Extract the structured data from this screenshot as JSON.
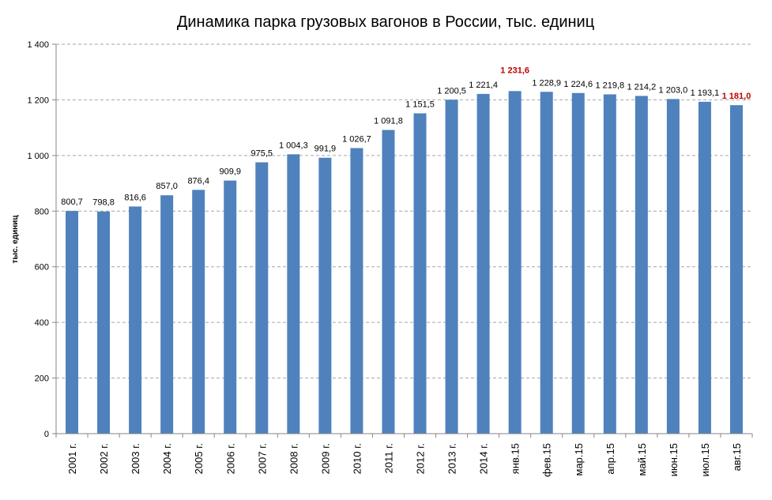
{
  "chart_data": {
    "type": "bar",
    "title": "Динамика парка грузовых вагонов в России, тыс. единиц",
    "xlabel": "",
    "ylabel": "тыс. единиц",
    "ylim": [
      0,
      1400
    ],
    "yticks": [
      0,
      200,
      400,
      600,
      800,
      1000,
      1200,
      1400
    ],
    "ytick_labels": [
      "0",
      "200",
      "400",
      "600",
      "800",
      "1 000",
      "1 200",
      "1 400"
    ],
    "grid": true,
    "legend": "none",
    "categories": [
      "2001 г.",
      "2002 г.",
      "2003 г.",
      "2004 г.",
      "2005 г.",
      "2006 г.",
      "2007 г.",
      "2008 г.",
      "2009 г.",
      "2010 г.",
      "2011 г.",
      "2012 г.",
      "2013 г.",
      "2014 г.",
      "янв.15",
      "фев.15",
      "мар.15",
      "апр.15",
      "май.15",
      "июн.15",
      "июл.15",
      "авг.15"
    ],
    "values": [
      800.7,
      798.8,
      816.6,
      857.0,
      876.4,
      909.9,
      975.5,
      1004.3,
      991.9,
      1026.7,
      1091.8,
      1151.5,
      1200.5,
      1221.4,
      1231.6,
      1228.9,
      1224.6,
      1219.8,
      1214.2,
      1203.0,
      1193.1,
      1181.0
    ],
    "data_labels": [
      "800,7",
      "798,8",
      "816,6",
      "857,0",
      "876,4",
      "909,9",
      "975,5",
      "1 004,3",
      "991,9",
      "1 026,7",
      "1 091,8",
      "1 151,5",
      "1 200,5",
      "1 221,4",
      "1 231,6",
      "1 228,9",
      "1 224,6",
      "1 219,8",
      "1 214,2",
      "1 203,0",
      "1 193,1",
      "1 181,0"
    ],
    "highlighted_labels": [
      14,
      21
    ],
    "colors": {
      "bar": "#4F81BD",
      "highlight": "#C00000",
      "grid": "#A6A6A6",
      "axis": "#868686"
    }
  }
}
